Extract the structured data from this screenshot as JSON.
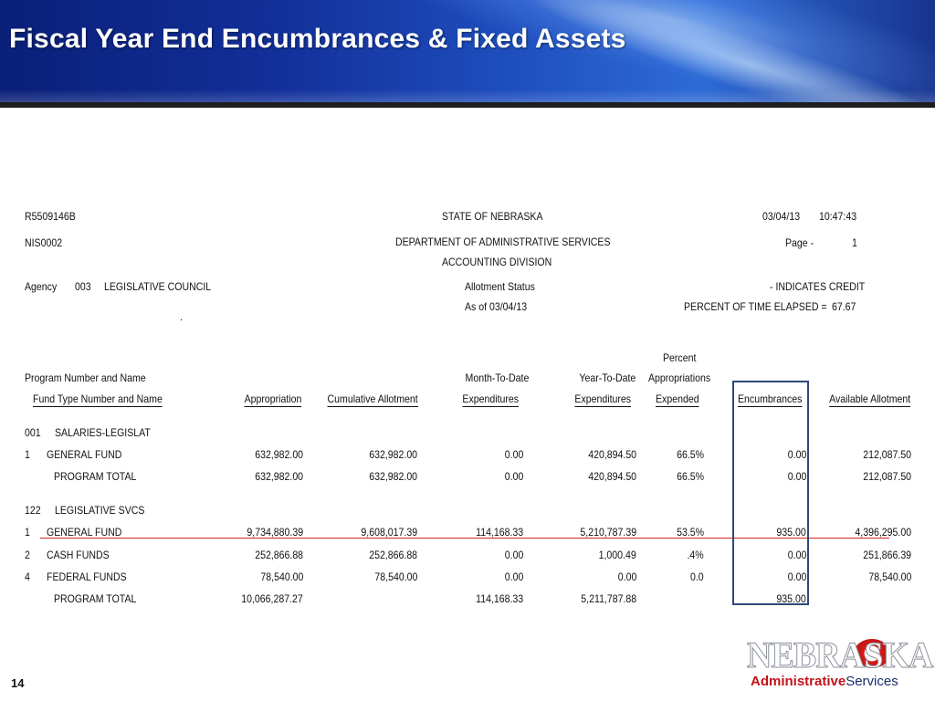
{
  "slide": {
    "title": "Fiscal Year End Encumbrances & Fixed Assets",
    "page_number": "14"
  },
  "report": {
    "header": {
      "report_id": "R5509146B",
      "sub_id": "NIS0002",
      "state": "STATE OF NEBRASKA",
      "department": "DEPARTMENT OF ADMINISTRATIVE SERVICES",
      "division": "ACCOUNTING DIVISION",
      "date": "03/04/13",
      "time": "10:47:43",
      "page_label": "Page -",
      "page_value": "1",
      "agency_label": "Agency",
      "agency_code": "003",
      "agency_name": "LEGISLATIVE COUNCIL",
      "status_label": "Allotment Status",
      "as_of": "As of 03/04/13",
      "credit_note": "- INDICATES CREDIT",
      "elapsed_label": "PERCENT OF TIME ELAPSED =",
      "elapsed_value": "67.67",
      "dot": "."
    },
    "columns": {
      "program_number_name": "Program Number and Name",
      "fund_type": "Fund Type Number and Name",
      "appropriation": "Appropriation",
      "cumulative_allotment": "Cumulative Allotment",
      "mtd_line1": "Month-To-Date",
      "mtd_line2": "Expenditures",
      "ytd_line1": "Year-To-Date",
      "ytd_line2": "Expenditures",
      "pct_line1": "Percent",
      "pct_line2": "Appropriations",
      "pct_line3": "Expended",
      "encumbrances": "Encumbrances",
      "available_allotment": "Available Allotment"
    },
    "program1": {
      "number": "001",
      "name": "SALARIES-LEGISLAT",
      "rows": [
        {
          "num": "1",
          "name": "GENERAL FUND",
          "appropriation": "632,982.00",
          "cumulative": "632,982.00",
          "mtd": "0.00",
          "ytd": "420,894.50",
          "pct": "66.5%",
          "enc": "0.00",
          "avail": "212,087.50"
        },
        {
          "num": "",
          "name": "PROGRAM TOTAL",
          "appropriation": "632,982.00",
          "cumulative": "632,982.00",
          "mtd": "0.00",
          "ytd": "420,894.50",
          "pct": "66.5%",
          "enc": "0.00",
          "avail": "212,087.50"
        }
      ]
    },
    "program2": {
      "number": "122",
      "name": "LEGISLATIVE SVCS",
      "rows": [
        {
          "num": "1",
          "name": "GENERAL FUND",
          "appropriation": "9,734,880.39",
          "cumulative": "9,608,017.39",
          "mtd": "114,168.33",
          "ytd": "5,210,787.39",
          "pct": "53.5%",
          "enc": "935.00",
          "avail": "4,396,295.00"
        },
        {
          "num": "2",
          "name": "CASH FUNDS",
          "appropriation": "252,866.88",
          "cumulative": "252,866.88",
          "mtd": "0.00",
          "ytd": "1,000.49",
          "pct": ".4%",
          "enc": "0.00",
          "avail": "251,866.39"
        },
        {
          "num": "4",
          "name": "FEDERAL FUNDS",
          "appropriation": "78,540.00",
          "cumulative": "78,540.00",
          "mtd": "0.00",
          "ytd": "0.00",
          "pct": "0.0",
          "enc": "0.00",
          "avail": "78,540.00"
        },
        {
          "num": "",
          "name": "PROGRAM TOTAL",
          "appropriation": "10,066,287.27",
          "cumulative": "",
          "mtd": "114,168.33",
          "ytd": "5,211,787.88",
          "pct": "",
          "enc": "935.00",
          "avail": ""
        }
      ]
    }
  },
  "logo": {
    "wordmark": "NEBRASKA",
    "sub_bold": "Administrative",
    "sub_rest": "Services",
    "accent_color": "#c0141a",
    "navy_color": "#1a2e6e"
  },
  "colors": {
    "highlight_line": "#d42020",
    "encumbrance_box": "#2d4a78"
  }
}
